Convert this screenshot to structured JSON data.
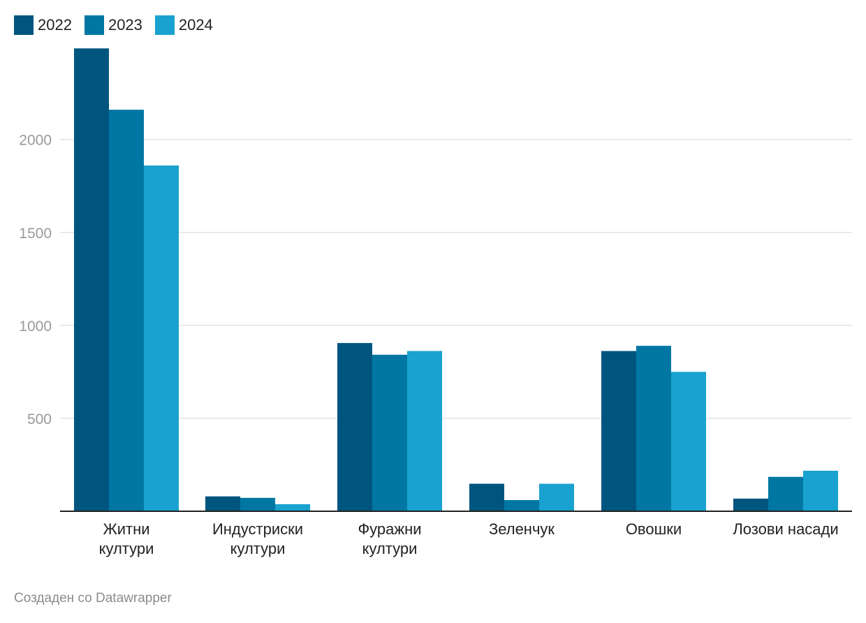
{
  "chart_data": {
    "type": "bar",
    "categories": [
      [
        "Житни",
        "култури"
      ],
      [
        "Индустриски",
        "култури"
      ],
      [
        "Фуражни",
        "култури"
      ],
      [
        "Зеленчук"
      ],
      [
        "Овошки"
      ],
      [
        "Лозови насади"
      ]
    ],
    "series": [
      {
        "name": "2022",
        "color": "#00557f",
        "values": [
          2490,
          80,
          905,
          148,
          862,
          68
        ]
      },
      {
        "name": "2023",
        "color": "#0077a3",
        "values": [
          2160,
          72,
          842,
          60,
          890,
          185
        ]
      },
      {
        "name": "2024",
        "color": "#19a2cf",
        "values": [
          1860,
          38,
          862,
          148,
          750,
          218
        ]
      }
    ],
    "y_ticks": [
      500,
      1000,
      1500,
      2000
    ],
    "ylim": [
      0,
      2600
    ],
    "grid": true,
    "legend_position": "top-left",
    "footer": "Создаден со Datawrapper"
  }
}
